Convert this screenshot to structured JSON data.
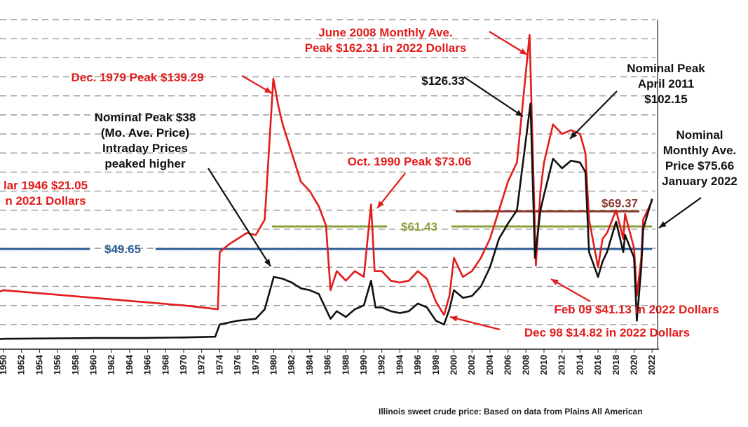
{
  "chart_data": {
    "type": "line",
    "xlim": [
      1950,
      2022
    ],
    "ylim": [
      0,
      170
    ],
    "grid": true,
    "x_ticks": [
      "1950",
      "1952",
      "1954",
      "1956",
      "1958",
      "1960",
      "1962",
      "1964",
      "1966",
      "1968",
      "1970",
      "1972",
      "1974",
      "1976",
      "1978",
      "1980",
      "1982",
      "1984",
      "1986",
      "1988",
      "1990",
      "1992",
      "1994",
      "1996",
      "1998",
      "2000",
      "2002",
      "2004",
      "2006",
      "2008",
      "2010",
      "2012",
      "2014",
      "2016",
      "2018",
      "2020",
      "2022"
    ],
    "series": [
      {
        "color": "#e31b1b",
        "points": [
          [
            1946,
            21
          ],
          [
            1950,
            28
          ],
          [
            1955,
            26
          ],
          [
            1960,
            24
          ],
          [
            1965,
            22
          ],
          [
            1970,
            20
          ],
          [
            1973.8,
            18
          ],
          [
            1974,
            48
          ],
          [
            1975,
            52
          ],
          [
            1976,
            55
          ],
          [
            1977,
            58
          ],
          [
            1978,
            57
          ],
          [
            1979,
            65
          ],
          [
            1979.95,
            139
          ],
          [
            1980.5,
            125
          ],
          [
            1981,
            115
          ],
          [
            1982,
            100
          ],
          [
            1983,
            85
          ],
          [
            1984,
            80
          ],
          [
            1985,
            72
          ],
          [
            1985.8,
            62
          ],
          [
            1986.3,
            28
          ],
          [
            1987,
            38
          ],
          [
            1988,
            33
          ],
          [
            1989,
            38
          ],
          [
            1990,
            35
          ],
          [
            1990.8,
            73
          ],
          [
            1991.2,
            38
          ],
          [
            1992,
            38
          ],
          [
            1993,
            33
          ],
          [
            1994,
            32
          ],
          [
            1995,
            33
          ],
          [
            1996,
            38
          ],
          [
            1997,
            34
          ],
          [
            1998,
            22
          ],
          [
            1998.9,
            15
          ],
          [
            1999.5,
            25
          ],
          [
            2000,
            45
          ],
          [
            2001,
            35
          ],
          [
            2002,
            38
          ],
          [
            2003,
            45
          ],
          [
            2004,
            55
          ],
          [
            2005,
            70
          ],
          [
            2006,
            85
          ],
          [
            2007,
            95
          ],
          [
            2008.4,
            162
          ],
          [
            2008.9,
            75
          ],
          [
            2009.1,
            41
          ],
          [
            2009.6,
            80
          ],
          [
            2010,
            95
          ],
          [
            2011,
            115
          ],
          [
            2012,
            110
          ],
          [
            2013,
            112
          ],
          [
            2014,
            110
          ],
          [
            2014.6,
            100
          ],
          [
            2015,
            65
          ],
          [
            2016,
            40
          ],
          [
            2016.5,
            55
          ],
          [
            2017,
            58
          ],
          [
            2018,
            70
          ],
          [
            2018.8,
            55
          ],
          [
            2019,
            68
          ],
          [
            2020,
            50
          ],
          [
            2020.3,
            25
          ],
          [
            2020.8,
            45
          ],
          [
            2021,
            65
          ],
          [
            2022,
            75
          ]
        ]
      },
      {
        "color": "#111111",
        "points": [
          [
            1946,
            1.2
          ],
          [
            1950,
            2.5
          ],
          [
            1955,
            2.7
          ],
          [
            1960,
            2.9
          ],
          [
            1965,
            2.9
          ],
          [
            1970,
            3.2
          ],
          [
            1973.5,
            3.6
          ],
          [
            1974,
            10
          ],
          [
            1976,
            12
          ],
          [
            1978,
            13
          ],
          [
            1979,
            18
          ],
          [
            1980,
            35
          ],
          [
            1981,
            34
          ],
          [
            1982,
            32
          ],
          [
            1983,
            29
          ],
          [
            1984,
            28
          ],
          [
            1985,
            26
          ],
          [
            1986.3,
            13
          ],
          [
            1987,
            17
          ],
          [
            1988,
            14
          ],
          [
            1989,
            18
          ],
          [
            1990,
            20
          ],
          [
            1990.8,
            33
          ],
          [
            1991.3,
            19
          ],
          [
            1992,
            19
          ],
          [
            1993,
            17
          ],
          [
            1994,
            16
          ],
          [
            1995,
            17
          ],
          [
            1996,
            21
          ],
          [
            1997,
            19
          ],
          [
            1998,
            12
          ],
          [
            1998.9,
            10
          ],
          [
            1999.5,
            18
          ],
          [
            2000,
            28
          ],
          [
            2001,
            24
          ],
          [
            2002,
            25
          ],
          [
            2003,
            30
          ],
          [
            2004,
            40
          ],
          [
            2005,
            55
          ],
          [
            2006,
            63
          ],
          [
            2007,
            70
          ],
          [
            2008.5,
            126
          ],
          [
            2009,
            45
          ],
          [
            2009.6,
            70
          ],
          [
            2010,
            78
          ],
          [
            2011,
            97
          ],
          [
            2012,
            92
          ],
          [
            2013,
            96
          ],
          [
            2014,
            95
          ],
          [
            2014.6,
            90
          ],
          [
            2015,
            48
          ],
          [
            2016,
            35
          ],
          [
            2016.5,
            43
          ],
          [
            2017,
            48
          ],
          [
            2018,
            64
          ],
          [
            2018.8,
            48
          ],
          [
            2019,
            57
          ],
          [
            2020,
            45
          ],
          [
            2020.3,
            12
          ],
          [
            2020.8,
            40
          ],
          [
            2021,
            60
          ],
          [
            2022,
            76
          ]
        ]
      }
    ],
    "reference_lines": [
      {
        "label": "$49.65",
        "value": 49.65,
        "color": "#2e5f99"
      },
      {
        "label": "$61.43",
        "value": 61.43,
        "color": "#8aa03a"
      },
      {
        "label": "$69.37",
        "value": 69.37,
        "color": "#8b3a2e"
      }
    ],
    "annotations": [
      {
        "lines": [
          "June 2008 Monthly Ave.",
          "Peak $162.31 in 2022 Dollars"
        ],
        "color": "#e31b1b"
      },
      {
        "lines": [
          "Dec. 1979 Peak $139.29"
        ],
        "color": "#e31b1b"
      },
      {
        "lines": [
          "$126.33"
        ],
        "color": "#111111"
      },
      {
        "lines": [
          "Nominal Peak",
          "April 2011",
          "$102.15"
        ],
        "color": "#111111"
      },
      {
        "lines": [
          "Nominal Peak $38",
          "(Mo. Ave. Price)",
          "Intraday Prices",
          "peaked higher"
        ],
        "color": "#111111"
      },
      {
        "lines": [
          "Oct. 1990 Peak $73.06"
        ],
        "color": "#e31b1b"
      },
      {
        "lines": [
          "Nominal",
          "Monthly Ave.",
          "Price $75.66",
          "January 2022"
        ],
        "color": "#111111"
      },
      {
        "lines": [
          "lar 1946 $21.05",
          "n 2021 Dollars"
        ],
        "color": "#e31b1b"
      },
      {
        "lines": [
          "Feb 09 $41.13 in 2022 Dollars"
        ],
        "color": "#e31b1b"
      },
      {
        "lines": [
          "Dec 98 $14.82 in 2022 Dollars"
        ],
        "color": "#e31b1b"
      }
    ]
  },
  "source_note": "Illinois sweet crude price: Based on data from Plains All American"
}
